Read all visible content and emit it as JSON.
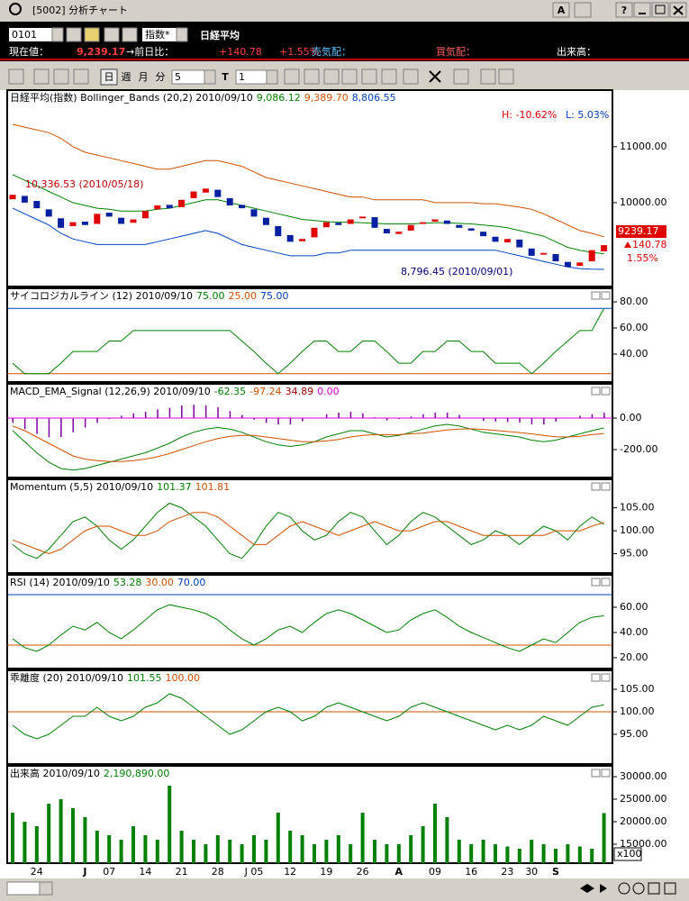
{
  "window": {
    "title": "[5002] 分析チャート",
    "buttons": [
      "A",
      "?"
    ]
  },
  "quote": {
    "code": "0101",
    "market": "指数*",
    "name": "日経平均",
    "price_label": "現在値：",
    "price": "9,239.17",
    "change_label": "→前日比：",
    "change": "+140.78",
    "change_pct": "+1.55%",
    "ask_label": "売気配：",
    "bid_label": "買気配：",
    "volume_label": "出来高："
  },
  "toolbar": {
    "periods": [
      "日",
      "週",
      "月",
      "分"
    ],
    "minutes": "5",
    "t": "T",
    "t_value": "1"
  },
  "chart_data": [
    {
      "type": "candlestick",
      "title": "日経平均(指数) Bollinger_Bands (20,2) 2010/09/10",
      "legend": [
        {
          "text": "9,086.12",
          "color": "#008000"
        },
        {
          "text": "9,389.70",
          "color": "#d05000"
        },
        {
          "text": "8,806.55",
          "color": "#0040c0"
        }
      ],
      "up_color": "#e00000",
      "down_color": "#0020a0",
      "open": [
        10060,
        10120,
        10030,
        9880,
        9720,
        9580,
        9660,
        9620,
        9820,
        9730,
        9640,
        9720,
        9880,
        9960,
        9920,
        10080,
        10180,
        10230,
        10080,
        9960,
        9880,
        9730,
        9580,
        9420,
        9310,
        9380,
        9560,
        9640,
        9620,
        9720,
        9740,
        9530,
        9440,
        9500,
        9620,
        9660,
        9680,
        9600,
        9540,
        9480,
        9390,
        9290,
        9340,
        9180,
        9070,
        9080,
        8940,
        8870,
        8950,
        9130
      ],
      "close": [
        10140,
        10000,
        9900,
        9750,
        9550,
        9650,
        9600,
        9800,
        9750,
        9620,
        9700,
        9850,
        9950,
        9900,
        10050,
        10200,
        10250,
        10100,
        9950,
        9900,
        9750,
        9600,
        9400,
        9300,
        9350,
        9550,
        9650,
        9600,
        9700,
        9750,
        9550,
        9450,
        9480,
        9600,
        9650,
        9700,
        9620,
        9550,
        9500,
        9400,
        9300,
        9350,
        9200,
        9050,
        9100,
        8950,
        8850,
        8930,
        9150,
        9239.17
      ],
      "series": [
        {
          "color": "#d05000",
          "values": [
            11400,
            11350,
            11300,
            11250,
            11150,
            11000,
            10900,
            10850,
            10800,
            10750,
            10700,
            10650,
            10600,
            10600,
            10650,
            10700,
            10750,
            10750,
            10700,
            10650,
            10550,
            10450,
            10400,
            10350,
            10300,
            10250,
            10200,
            10150,
            10100,
            10100,
            10050,
            10050,
            10050,
            10050,
            10050,
            10000,
            10000,
            10000,
            10000,
            9980,
            9980,
            9950,
            9920,
            9880,
            9800,
            9700,
            9600,
            9500,
            9450,
            9389.7
          ]
        },
        {
          "color": "#008000",
          "values": [
            10500,
            10400,
            10300,
            10200,
            10100,
            10000,
            9950,
            9900,
            9880,
            9850,
            9850,
            9850,
            9880,
            9900,
            9950,
            10000,
            10050,
            10050,
            10000,
            9950,
            9900,
            9850,
            9800,
            9750,
            9700,
            9680,
            9660,
            9650,
            9650,
            9640,
            9630,
            9620,
            9620,
            9620,
            9630,
            9640,
            9640,
            9630,
            9620,
            9600,
            9580,
            9550,
            9500,
            9450,
            9400,
            9300,
            9200,
            9150,
            9110,
            9086.12
          ]
        },
        {
          "color": "#0040c0",
          "values": [
            9900,
            9800,
            9700,
            9600,
            9450,
            9350,
            9300,
            9250,
            9250,
            9250,
            9250,
            9250,
            9300,
            9350,
            9400,
            9450,
            9500,
            9450,
            9350,
            9250,
            9200,
            9150,
            9100,
            9050,
            9050,
            9050,
            9100,
            9100,
            9150,
            9150,
            9150,
            9150,
            9150,
            9150,
            9150,
            9150,
            9150,
            9150,
            9150,
            9150,
            9150,
            9100,
            9050,
            9000,
            8950,
            8900,
            8850,
            8820,
            8810,
            8806.55
          ]
        }
      ],
      "ylim": [
        8500,
        11980
      ],
      "yticks": [
        {
          "value": 11000,
          "label": "11000.00"
        },
        {
          "value": 10000,
          "label": "10000.00"
        }
      ],
      "annotations": [
        {
          "text": "10,336.53 (2010/05/18)",
          "color": "#c00000"
        },
        {
          "text": "8,796.45 (2010/09/01)",
          "color": "#000080"
        },
        {
          "text": "H: -10.62%",
          "color": "#e00000"
        },
        {
          "text": "L: 5.03%",
          "color": "#0040c0"
        },
        {
          "text": "9239.17",
          "color": "#ffffff",
          "background": "#e00000"
        },
        {
          "text": "140.78",
          "color": "#e00000"
        },
        {
          "text": "1.55%",
          "color": "#e00000"
        }
      ]
    },
    {
      "type": "line",
      "title": "サイコロジカルライン (12) 2010/09/10",
      "legend": [
        {
          "text": "75.00",
          "color": "#008000"
        },
        {
          "text": "25.00",
          "color": "#d05000"
        },
        {
          "text": "75.00",
          "color": "#0040c0"
        }
      ],
      "series": [
        {
          "color": "#008000",
          "values": [
            33,
            25,
            25,
            25,
            33,
            42,
            42,
            42,
            50,
            50,
            58,
            58,
            58,
            58,
            58,
            58,
            58,
            58,
            58,
            50,
            42,
            33,
            25,
            33,
            42,
            50,
            50,
            42,
            42,
            50,
            50,
            42,
            33,
            33,
            42,
            42,
            50,
            50,
            42,
            42,
            33,
            33,
            33,
            25,
            33,
            42,
            50,
            58,
            58,
            75
          ]
        }
      ],
      "ref_lines": [
        {
          "value": 25,
          "color": "#d05000"
        },
        {
          "value": 75,
          "color": "#0040c0"
        }
      ],
      "ylim": [
        18.6,
        89
      ],
      "yticks": [
        {
          "value": 80,
          "label": "80.00"
        },
        {
          "value": 60,
          "label": "60.00"
        },
        {
          "value": 40,
          "label": "40.00"
        }
      ]
    },
    {
      "type": "line",
      "title": "MACD_EMA_Signal (12,26,9) 2010/09/10",
      "legend": [
        {
          "text": "-62.35",
          "color": "#008000"
        },
        {
          "text": "-97.24",
          "color": "#d05000"
        },
        {
          "text": "34.89",
          "color": "#a00000"
        },
        {
          "text": "0.00",
          "color": "#e000e0"
        }
      ],
      "series": [
        {
          "color": "#008000",
          "values": [
            -80,
            -150,
            -220,
            -280,
            -320,
            -330,
            -320,
            -300,
            -280,
            -260,
            -240,
            -220,
            -190,
            -160,
            -120,
            -90,
            -70,
            -60,
            -70,
            -90,
            -120,
            -150,
            -170,
            -180,
            -170,
            -150,
            -120,
            -100,
            -80,
            -80,
            -100,
            -120,
            -110,
            -90,
            -70,
            -50,
            -40,
            -50,
            -70,
            -90,
            -100,
            -110,
            -120,
            -140,
            -150,
            -140,
            -120,
            -100,
            -80,
            -62.35
          ]
        },
        {
          "color": "#d05000",
          "values": [
            -50,
            -80,
            -120,
            -160,
            -200,
            -240,
            -260,
            -270,
            -275,
            -275,
            -270,
            -260,
            -245,
            -225,
            -200,
            -175,
            -150,
            -130,
            -115,
            -110,
            -110,
            -120,
            -130,
            -140,
            -150,
            -150,
            -145,
            -135,
            -120,
            -110,
            -105,
            -105,
            -105,
            -100,
            -95,
            -85,
            -75,
            -70,
            -68,
            -72,
            -78,
            -85,
            -92,
            -100,
            -110,
            -118,
            -120,
            -115,
            -105,
            -97.24
          ]
        }
      ],
      "bars": {
        "color": "#8000a0",
        "values": [
          -30,
          -70,
          -100,
          -120,
          -120,
          -90,
          -60,
          -30,
          -5,
          15,
          30,
          40,
          55,
          65,
          80,
          85,
          80,
          70,
          45,
          20,
          -10,
          -30,
          -40,
          -40,
          -20,
          0,
          25,
          35,
          40,
          30,
          5,
          -15,
          -5,
          10,
          25,
          35,
          35,
          20,
          -2,
          -18,
          -22,
          -25,
          -28,
          -40,
          -40,
          -22,
          0,
          15,
          25,
          34.89
        ]
      },
      "ref_lines": [
        {
          "value": 0,
          "color": "#e000e0"
        }
      ],
      "ylim": [
        -377,
        206
      ],
      "yticks": [
        {
          "value": 0,
          "label": "0.00"
        },
        {
          "value": -200,
          "label": "-200.00"
        }
      ]
    },
    {
      "type": "line",
      "title": "Momentum (5,5) 2010/09/10",
      "legend": [
        {
          "text": "101.37",
          "color": "#008000"
        },
        {
          "text": "101.81",
          "color": "#d05000"
        }
      ],
      "series": [
        {
          "color": "#008000",
          "values": [
            97,
            95,
            94,
            96,
            99,
            102,
            103,
            101,
            98,
            96,
            98,
            101,
            104,
            106,
            105,
            103,
            101,
            98,
            95,
            94,
            97,
            101,
            104,
            103,
            100,
            98,
            99,
            102,
            104,
            103,
            100,
            97,
            99,
            102,
            104,
            103,
            101,
            99,
            97,
            98,
            100,
            99,
            97,
            99,
            101,
            100,
            98,
            101,
            103,
            101.37
          ]
        },
        {
          "color": "#d05000",
          "values": [
            98,
            97,
            96,
            95,
            96,
            98,
            100,
            101,
            101,
            100,
            99,
            99,
            100,
            102,
            103,
            104,
            104,
            103,
            101,
            99,
            97,
            97,
            99,
            101,
            102,
            101,
            100,
            99,
            100,
            101,
            102,
            101,
            100,
            100,
            101,
            102,
            102,
            101,
            100,
            99,
            99,
            99,
            99,
            99,
            99,
            100,
            100,
            100,
            101,
            101.81
          ]
        }
      ],
      "ylim": [
        90.8,
        110.8
      ],
      "yticks": [
        {
          "value": 105,
          "label": "105.00"
        },
        {
          "value": 100,
          "label": "100.00"
        },
        {
          "value": 95,
          "label": "95.00"
        }
      ]
    },
    {
      "type": "line",
      "title": "RSI (14) 2010/09/10",
      "legend": [
        {
          "text": "53.28",
          "color": "#008000"
        },
        {
          "text": "30.00",
          "color": "#d05000"
        },
        {
          "text": "70.00",
          "color": "#0040c0"
        }
      ],
      "series": [
        {
          "color": "#008000",
          "values": [
            35,
            28,
            25,
            30,
            38,
            45,
            42,
            48,
            40,
            35,
            42,
            50,
            58,
            62,
            60,
            58,
            55,
            50,
            42,
            35,
            30,
            35,
            42,
            45,
            40,
            48,
            55,
            58,
            55,
            50,
            45,
            40,
            42,
            50,
            55,
            58,
            52,
            45,
            40,
            36,
            32,
            28,
            25,
            30,
            35,
            32,
            40,
            48,
            52,
            53.28
          ]
        }
      ],
      "ref_lines": [
        {
          "value": 30,
          "color": "#d05000"
        },
        {
          "value": 70,
          "color": "#0040c0"
        }
      ],
      "ylim": [
        11.4,
        84.3
      ],
      "yticks": [
        {
          "value": 60,
          "label": "60.00"
        },
        {
          "value": 40,
          "label": "40.00"
        },
        {
          "value": 20,
          "label": "20.00"
        }
      ]
    },
    {
      "type": "line",
      "title": "乖離度 (20) 2010/09/10",
      "legend": [
        {
          "text": "101.55",
          "color": "#008000"
        },
        {
          "text": "100.00",
          "color": "#d05000"
        }
      ],
      "series": [
        {
          "color": "#008000",
          "values": [
            97,
            95,
            94,
            95,
            97,
            99,
            99,
            101,
            99,
            98,
            99,
            101,
            102,
            104,
            103,
            101,
            99,
            97,
            95,
            96,
            98,
            100,
            101,
            100,
            98,
            99,
            101,
            102,
            101,
            100,
            99,
            98,
            99,
            101,
            102,
            101,
            100,
            99,
            98,
            97,
            96,
            97,
            96,
            97,
            99,
            98,
            97,
            99,
            101,
            101.55
          ]
        }
      ],
      "ref_lines": [
        {
          "value": 100,
          "color": "#d05000"
        }
      ],
      "ylim": [
        88.4,
        108.8
      ],
      "yticks": [
        {
          "value": 105,
          "label": "105.00"
        },
        {
          "value": 100,
          "label": "100.00"
        },
        {
          "value": 95,
          "label": "95.00"
        }
      ]
    },
    {
      "type": "bar",
      "title": "出来高 2010/09/10",
      "legend": [
        {
          "text": "2,190,890.00",
          "color": "#008000"
        }
      ],
      "color": "#008000",
      "values": [
        22000,
        20000,
        19000,
        24000,
        25000,
        23000,
        21000,
        18000,
        17000,
        16000,
        19000,
        17000,
        16000,
        28000,
        18000,
        16000,
        15000,
        17000,
        16000,
        15000,
        17000,
        16000,
        22000,
        18000,
        17000,
        15000,
        16000,
        17000,
        15000,
        22000,
        16000,
        15000,
        15000,
        17000,
        19000,
        24000,
        21000,
        16000,
        15000,
        16000,
        15000,
        14500,
        14000,
        16000,
        15000,
        14000,
        15000,
        14500,
        14000,
        21908.9
      ],
      "categories": [
        null,
        null,
        "24",
        null,
        null,
        null,
        "J",
        null,
        "07",
        null,
        null,
        "14",
        null,
        null,
        "21",
        null,
        null,
        "28",
        null,
        null,
        "J 05",
        null,
        null,
        "12",
        null,
        null,
        "19",
        null,
        null,
        "26",
        null,
        null,
        "A",
        null,
        null,
        "09",
        null,
        null,
        "16",
        null,
        null,
        "23",
        null,
        "30",
        null,
        "S",
        null,
        null,
        null,
        null
      ],
      "unit": "x100",
      "ylim": [
        10800,
        32000
      ],
      "yticks": [
        {
          "value": 30000,
          "label": "30000.00"
        },
        {
          "value": 25000,
          "label": "25000.00"
        },
        {
          "value": 20000,
          "label": "20000.00"
        },
        {
          "value": 15000,
          "label": "15000.00"
        }
      ]
    }
  ]
}
